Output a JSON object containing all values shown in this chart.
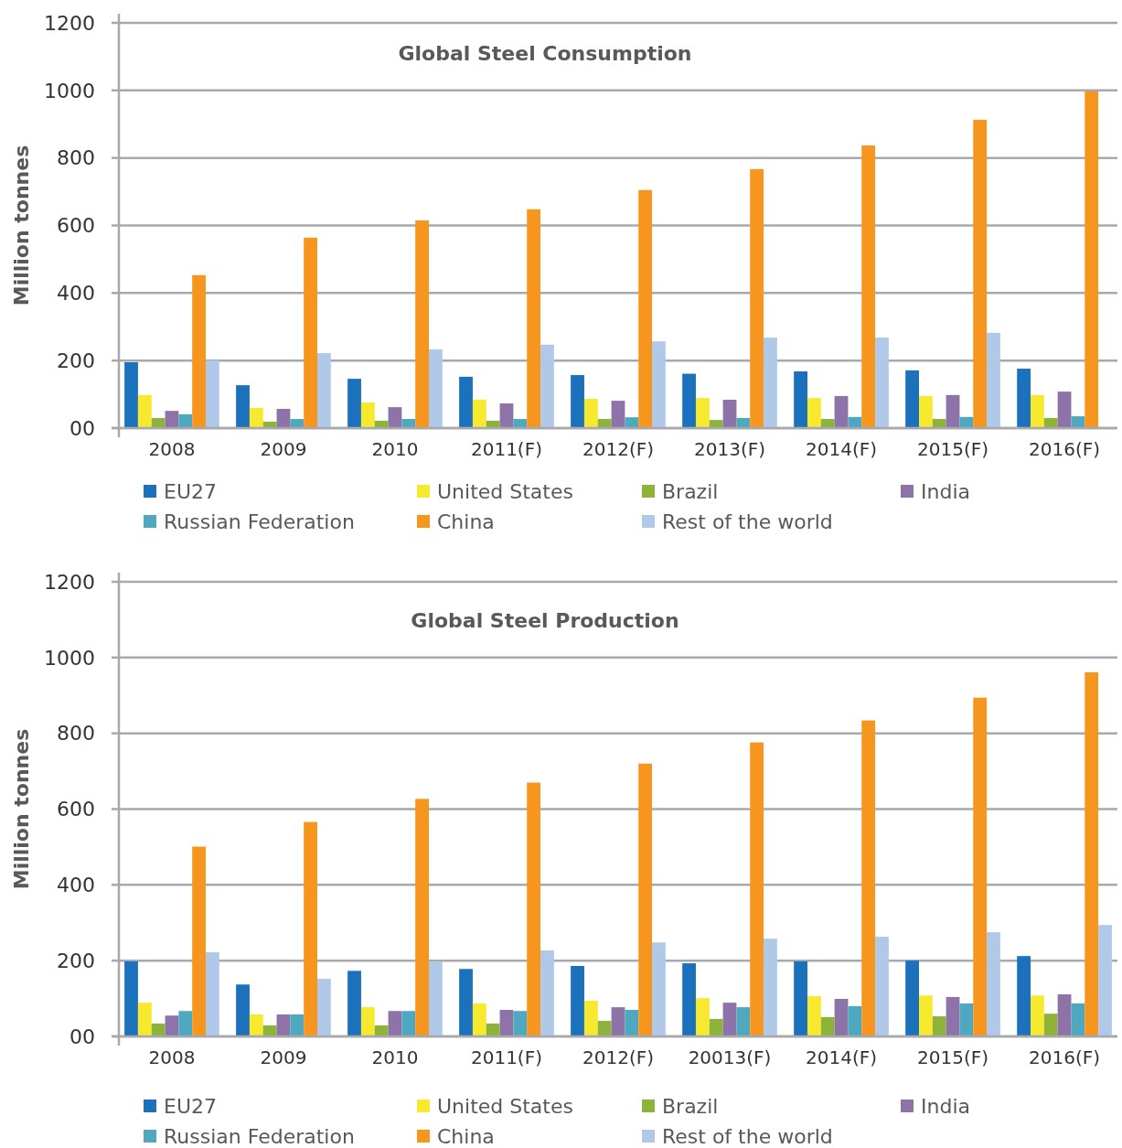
{
  "chart_data": [
    {
      "type": "bar",
      "title": "Global Steel Consumption",
      "ylabel": "Million tonnes",
      "categories": [
        "2008",
        "2009",
        "2010",
        "2011(F)",
        "2012(F)",
        "2013(F)",
        "2014(F)",
        "2015(F)",
        "2016(F)"
      ],
      "ylim": [
        0,
        1200
      ],
      "yticks": [
        {
          "value": 0,
          "label": "00"
        },
        200,
        400,
        600,
        800,
        1000,
        1200
      ],
      "grid": "y",
      "legend": "bottom",
      "series": [
        {
          "name": "EU27",
          "color": "#1c71bd",
          "values": [
            195,
            127,
            146,
            152,
            157,
            161,
            168,
            171,
            176
          ]
        },
        {
          "name": "United States",
          "color": "#f7e92e",
          "values": [
            98,
            60,
            76,
            84,
            87,
            89,
            89,
            95,
            98
          ]
        },
        {
          "name": "Brazil",
          "color": "#8db33a",
          "values": [
            30,
            19,
            22,
            22,
            27,
            24,
            27,
            27,
            30
          ]
        },
        {
          "name": "India",
          "color": "#8e73a8",
          "values": [
            51,
            57,
            62,
            73,
            81,
            84,
            95,
            98,
            108
          ]
        },
        {
          "name": "Russian Federation",
          "color": "#4ea8bf",
          "values": [
            41,
            27,
            27,
            27,
            32,
            30,
            33,
            33,
            35
          ]
        },
        {
          "name": "China",
          "color": "#f7961e",
          "values": [
            453,
            564,
            615,
            648,
            705,
            767,
            837,
            913,
            997
          ]
        },
        {
          "name": "Rest of the world",
          "color": "#b0c9e8",
          "values": [
            200,
            222,
            233,
            247,
            257,
            268,
            268,
            282,
            null
          ]
        }
      ]
    },
    {
      "type": "bar",
      "title": "Global Steel Production",
      "ylabel": "Million tonnes",
      "categories": [
        "2008",
        "2009",
        "2010",
        "2011(F)",
        "2012(F)",
        "20013(F)",
        "2014(F)",
        "2015(F)",
        "2016(F)"
      ],
      "ylim": [
        0,
        1200
      ],
      "yticks": [
        {
          "value": 0,
          "label": "00"
        },
        200,
        400,
        600,
        800,
        1000,
        1200
      ],
      "grid": "y",
      "legend": "bottom",
      "series": [
        {
          "name": "EU27",
          "color": "#1c71bd",
          "values": [
            198,
            137,
            173,
            178,
            186,
            193,
            198,
            200,
            212
          ]
        },
        {
          "name": "United States",
          "color": "#f7e92e",
          "values": [
            89,
            58,
            77,
            87,
            94,
            101,
            106,
            108,
            108
          ]
        },
        {
          "name": "Brazil",
          "color": "#8db33a",
          "values": [
            34,
            29,
            29,
            34,
            41,
            46,
            51,
            53,
            60
          ]
        },
        {
          "name": "India",
          "color": "#8e73a8",
          "values": [
            55,
            58,
            67,
            70,
            77,
            89,
            99,
            104,
            111
          ]
        },
        {
          "name": "Russian Federation",
          "color": "#4ea8bf",
          "values": [
            67,
            58,
            67,
            67,
            70,
            77,
            80,
            87,
            87
          ]
        },
        {
          "name": "China",
          "color": "#f7961e",
          "values": [
            501,
            566,
            627,
            670,
            720,
            776,
            834,
            894,
            961
          ]
        },
        {
          "name": "Rest of the world",
          "color": "#b0c9e8",
          "values": [
            222,
            152,
            198,
            227,
            248,
            258,
            263,
            275,
            294
          ]
        }
      ]
    }
  ]
}
